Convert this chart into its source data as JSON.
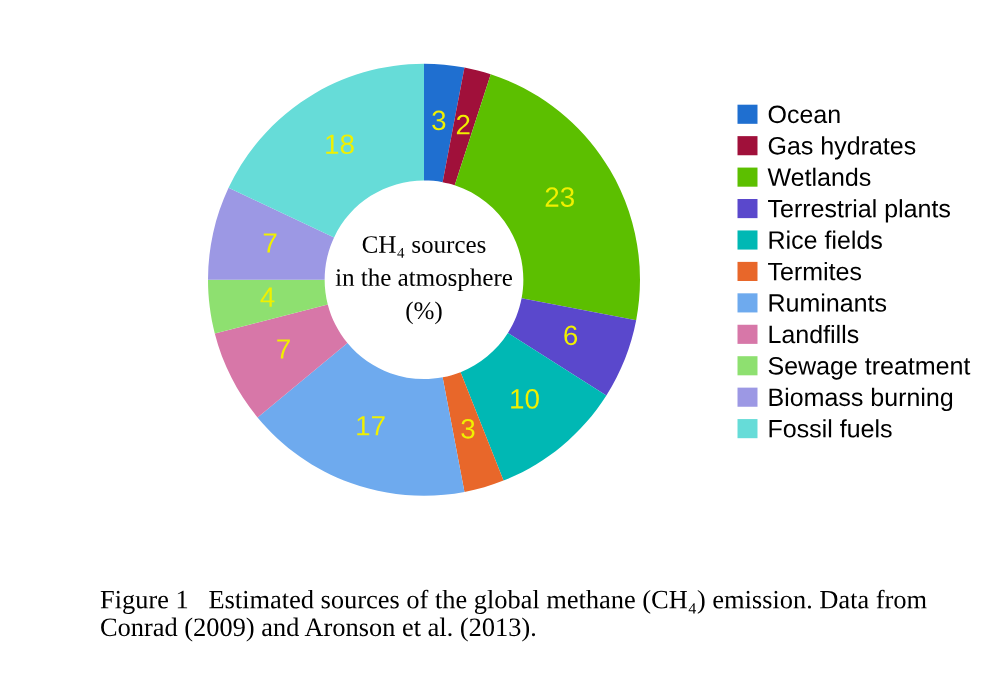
{
  "chart_data": {
    "type": "donut",
    "title": "CH₄ sources\nin the atmosphere\n(%)",
    "categories": [
      "Ocean",
      "Gas hydrates",
      "Wetlands",
      "Terrestrial plants",
      "Rice fields",
      "Termites",
      "Ruminants",
      "Landfills",
      "Sewage treatment",
      "Biomass burning",
      "Fossil fuels"
    ],
    "values": [
      3,
      2,
      23,
      6,
      10,
      3,
      17,
      7,
      4,
      7,
      18
    ],
    "colors": [
      "#1f6fd0",
      "#a0103a",
      "#5cbf00",
      "#5a48cc",
      "#00b8b4",
      "#e8672a",
      "#6eaaee",
      "#d777a8",
      "#8ee070",
      "#9c98e4",
      "#66dcd8"
    ],
    "data_labels": true,
    "legend": "right",
    "annotations": [
      "Figure 1   Estimated sources of the global methane (CH₄) emission. Data from Conrad (2009) and Aronson et al. (2013)."
    ]
  }
}
